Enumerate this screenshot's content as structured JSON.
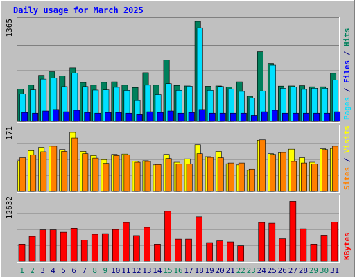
{
  "chart_data": {
    "type": "bar",
    "title": "Daily usage for March 2025",
    "colors": {
      "background": "#c0c0c0",
      "plot_bg": "#c0c0c0",
      "title": "#0000ff",
      "hits": "#00805c",
      "files": "#00e0ff",
      "pages": "#0000ff",
      "visits": "#ffff00",
      "sites": "#ff8000",
      "kbytes": "#ff0000",
      "weekend_day": "#00805c",
      "weekday": "#000080",
      "grid": "#808080"
    },
    "days": [
      "1",
      "2",
      "3",
      "4",
      "5",
      "6",
      "7",
      "8",
      "9",
      "10",
      "11",
      "12",
      "13",
      "14",
      "15",
      "16",
      "17",
      "18",
      "19",
      "20",
      "21",
      "22",
      "23",
      "24",
      "25",
      "26",
      "27",
      "28",
      "29",
      "30",
      "31"
    ],
    "weekend_days": [
      "1",
      "2",
      "8",
      "9",
      "15",
      "16",
      "22",
      "23",
      "29",
      "30"
    ],
    "panels": [
      {
        "id": "hits",
        "axis_max_label": "1365",
        "ymax": 1365,
        "side_labels": [
          {
            "text": "Pages",
            "color": "#00e0ff"
          },
          {
            "text": " / ",
            "color": "#000080"
          },
          {
            "text": "Files",
            "color": "#0000ff"
          },
          {
            "text": " / ",
            "color": "#000080"
          },
          {
            "text": "Hits",
            "color": "#00805c"
          }
        ],
        "series": [
          {
            "name": "Hits",
            "color": "#00805c",
            "values": [
              434,
              488,
              620,
              668,
              611,
              721,
              523,
              488,
              525,
              532,
              488,
              456,
              655,
              488,
              828,
              484,
              477,
              1346,
              473,
              477,
              462,
              532,
              337,
              939,
              780,
              475,
              477,
              481,
              466,
              466,
              647
            ]
          },
          {
            "name": "Files",
            "color": "#00e0ff",
            "values": [
              369,
              424,
              569,
              586,
              468,
              650,
              469,
              421,
              424,
              459,
              417,
              279,
              488,
              360,
              508,
              418,
              474,
              1260,
              418,
              470,
              437,
              403,
              315,
              409,
              757,
              445,
              461,
              431,
              446,
              446,
              557
            ]
          },
          {
            "name": "Pages",
            "color": "#0000ff",
            "values": [
              120,
              110,
              140,
              160,
              130,
              150,
              120,
              110,
              120,
              120,
              110,
              90,
              130,
              120,
              140,
              110,
              120,
              160,
              110,
              110,
              110,
              110,
              80,
              130,
              150,
              110,
              110,
              110,
              110,
              110,
              130
            ]
          }
        ]
      },
      {
        "id": "visits",
        "axis_max_label": "171",
        "ymax": 171,
        "side_labels": [
          {
            "text": "Sites",
            "color": "#ff8000"
          },
          {
            "text": " / ",
            "color": "#000080"
          },
          {
            "text": "Visits",
            "color": "#ffff00"
          }
        ],
        "series": [
          {
            "name": "Visits",
            "color": "#ffff00",
            "values": [
              82,
              109,
              118,
              121,
              112,
              158,
              107,
              96,
              85,
              99,
              100,
              81,
              82,
              71,
              99,
              78,
              87,
              125,
              93,
              107,
              74,
              71,
              56,
              137,
              101,
              103,
              113,
              90,
              78,
              114,
              115
            ]
          },
          {
            "name": "Sites",
            "color": "#ff8000",
            "values": [
              90,
              98,
              106,
              121,
              107,
              143,
              101,
              89,
              75,
              96,
              98,
              78,
              80,
              72,
              88,
              73,
              73,
              101,
              91,
              90,
              76,
              76,
              59,
              138,
              99,
              104,
              80,
              76,
              73,
              112,
              121
            ]
          }
        ]
      },
      {
        "id": "kbytes",
        "axis_max_label": "12632",
        "ymax": 12632,
        "side_labels": [
          {
            "text": "KBytes",
            "color": "#ff0000"
          }
        ],
        "series": [
          {
            "name": "KBytes",
            "color": "#ff0000",
            "values": [
              3390,
              4930,
              6230,
              6230,
              5750,
              6550,
              4170,
              5350,
              5480,
              6300,
              7680,
              5090,
              6730,
              3390,
              9910,
              4380,
              4380,
              8810,
              3700,
              4040,
              3840,
              3060,
              0,
              7680,
              7540,
              4450,
              11890,
              6440,
              3390,
              5160,
              7750
            ]
          }
        ]
      }
    ]
  }
}
